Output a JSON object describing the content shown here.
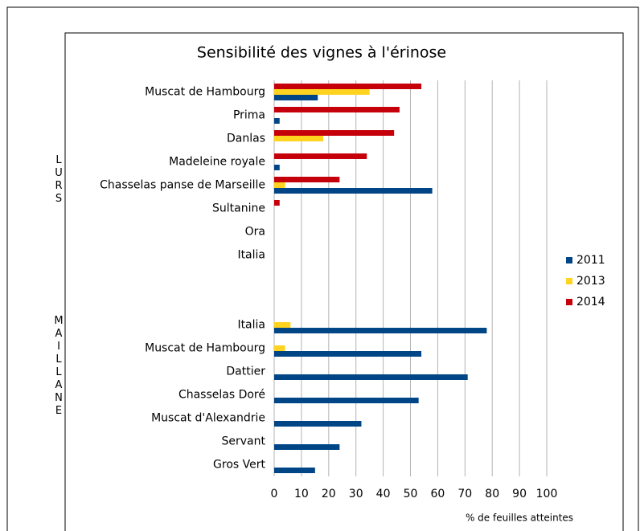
{
  "chart_data": {
    "type": "hbar",
    "title": "Sensibilité des vignes à l'érinose",
    "xlabel": "% de feuilles atteintes",
    "annotations": [
      "LURS",
      "MAILLANE"
    ],
    "categories": [
      "Muscat de Hambourg",
      "Prima",
      "Danlas",
      "Madeleine royale",
      "Chasselas panse de Marseille",
      "Sultanine",
      "Ora",
      "Italia",
      null,
      null,
      "Italia",
      "Muscat de Hambourg",
      "Dattier",
      "Chasselas Doré",
      "Muscat d'Alexandrie",
      "Servant",
      "Gros Vert"
    ],
    "series": [
      {
        "name": "2011",
        "color": "#004586",
        "values": [
          16,
          2,
          null,
          2,
          58,
          null,
          null,
          null,
          null,
          null,
          78,
          54,
          71,
          53,
          32,
          24,
          15
        ]
      },
      {
        "name": "2013",
        "color": "#ffd320",
        "values": [
          35,
          null,
          18,
          null,
          4,
          null,
          null,
          null,
          null,
          null,
          6,
          4,
          null,
          null,
          null,
          null,
          null
        ]
      },
      {
        "name": "2014",
        "color": "#c5000b",
        "values": [
          54,
          46,
          44,
          34,
          24,
          2,
          null,
          null,
          null,
          null,
          null,
          null,
          null,
          null,
          null,
          null,
          null
        ]
      }
    ],
    "xlim": [
      0,
      100
    ],
    "xticks": [
      0,
      10,
      20,
      30,
      40,
      50,
      60,
      70,
      80,
      90,
      100
    ],
    "grid": true,
    "legend": "right"
  }
}
